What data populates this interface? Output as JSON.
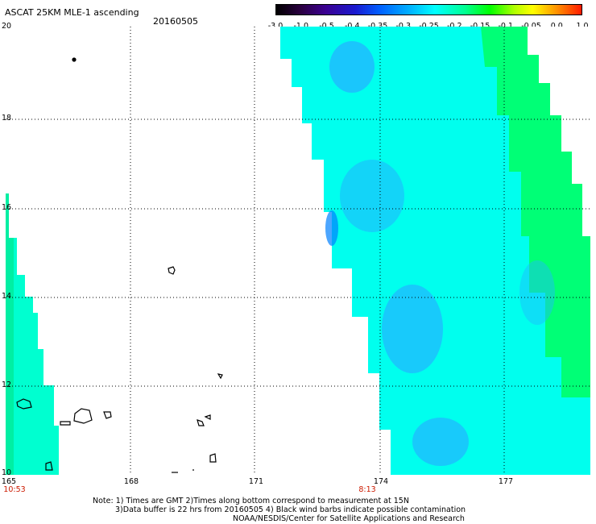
{
  "header": {
    "title": "ASCAT 25KM MLE-1 ascending",
    "date": "20160505"
  },
  "colorbar": {
    "ticks": [
      "-3.0",
      "-1.0",
      "-0.5",
      "-0.4",
      "-0.35",
      "-0.3",
      "-0.25",
      "-0.2",
      "-0.15",
      "-0.1",
      "-0.05",
      "0.0",
      "1.0"
    ],
    "colors": [
      "#000000",
      "#3b0090",
      "#1a1ad0",
      "#0060ff",
      "#00b4ff",
      "#00ffff",
      "#00ff90",
      "#00ff00",
      "#ffff00",
      "#ff9000",
      "#ff1a00"
    ]
  },
  "axes": {
    "x_labels": [
      "165",
      "168",
      "171",
      "174",
      "177"
    ],
    "y_labels": [
      "20",
      "18",
      "16",
      "14",
      "12",
      "10"
    ],
    "time_labels": [
      "10:53",
      "8:13"
    ]
  },
  "map_colors": {
    "swath_main": "#00ffee",
    "swath_blue": "#20b8ff",
    "swath_green": "#00ff60",
    "land_outline": "#000000"
  },
  "notes": {
    "line1": "Note: 1) Times are GMT 2)Times along bottom correspond to measurement at 15N",
    "line2": "3)Data buffer is 22 hrs from 20160505 4) Black wind barbs indicate possible contamination",
    "line3": "NOAA/NESDIS/Center for Satellite Applications and Research"
  }
}
